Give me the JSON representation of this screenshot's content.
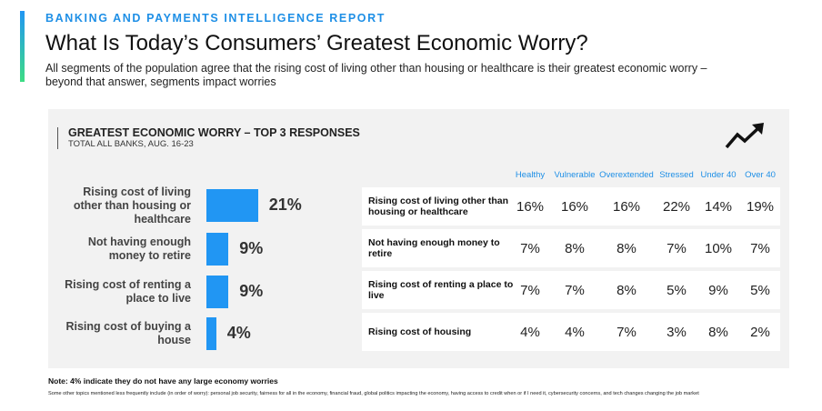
{
  "header": {
    "eyebrow": "BANKING AND PAYMENTS INTELLIGENCE REPORT",
    "title": "What Is Today’s Consumers’ Greatest Economic Worry?",
    "subtitle": "All segments of the population agree that the rising cost of living other than housing or healthcare is their greatest economic worry – beyond that answer, segments impact worries"
  },
  "chart_data": {
    "type": "bar",
    "orientation": "horizontal",
    "title": "GREATEST ECONOMIC WORRY – TOP 3 RESPONSES",
    "subtitle": "TOTAL ALL BANKS, AUG. 16-23",
    "categories": [
      "Rising cost of living other than housing or healthcare",
      "Not having enough money to retire",
      "Rising cost of renting a place to live",
      "Rising cost of buying a house"
    ],
    "values": [
      21,
      9,
      9,
      4
    ],
    "value_labels": [
      "21%",
      "9%",
      "9%",
      "4%"
    ],
    "color": "#2196f3"
  },
  "table": {
    "columns": [
      "Healthy",
      "Vulnerable",
      "Overextended",
      "Stressed",
      "Under 40",
      "Over 40"
    ],
    "rows": [
      {
        "label": "Rising cost of living other than housing or healthcare",
        "cells": [
          "16%",
          "16%",
          "16%",
          "22%",
          "14%",
          "19%"
        ]
      },
      {
        "label": "Not having enough money to retire",
        "cells": [
          "7%",
          "8%",
          "8%",
          "7%",
          "10%",
          "7%"
        ]
      },
      {
        "label": "Rising cost of renting a place to live",
        "cells": [
          "7%",
          "7%",
          "8%",
          "5%",
          "9%",
          "5%"
        ]
      },
      {
        "label": "Rising cost of housing",
        "cells": [
          "4%",
          "4%",
          "7%",
          "3%",
          "8%",
          "2%"
        ]
      }
    ]
  },
  "notes": {
    "note": "Note: 4% indicate they do not have any large economy worries",
    "footnote": "Some other topics mentioned less frequently include (in order of worry): personal job security, fairness for all in the economy, financial fraud, global politics impacting the economy, having access to credit when or if I need it, cybersecurity concerns, and tech changes changing the job market"
  }
}
